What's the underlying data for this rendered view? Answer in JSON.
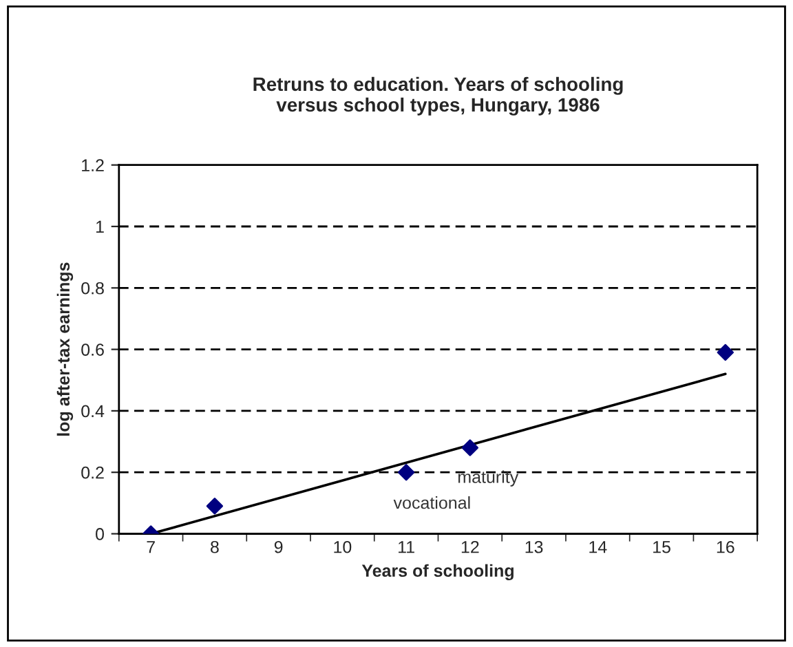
{
  "chart_data": {
    "type": "scatter",
    "title": "Retruns to education. Years of schooling\nversus school types, Hungary, 1986",
    "xlabel": "Years of schooling",
    "ylabel": "log after-tax earnings",
    "categories": [
      "7",
      "8",
      "9",
      "10",
      "11",
      "12",
      "13",
      "14",
      "15",
      "16"
    ],
    "series": [
      {
        "color": "#000080",
        "marker": "diamond",
        "values": [
          0,
          0.09,
          null,
          null,
          0.2,
          0.28,
          null,
          null,
          null,
          0.59
        ]
      },
      {
        "type": "line",
        "color": "#000000",
        "marker": "none",
        "line_style": "solid",
        "x": [
          "7",
          "16"
        ],
        "values": [
          0,
          0.52
        ]
      }
    ],
    "ylim": [
      0,
      1.2
    ],
    "yticks": [
      0,
      0.2,
      0.4,
      0.6,
      0.8,
      1,
      1.2
    ],
    "grid": "y",
    "legend": false,
    "annotations": [
      "maturity",
      "vocational"
    ]
  }
}
